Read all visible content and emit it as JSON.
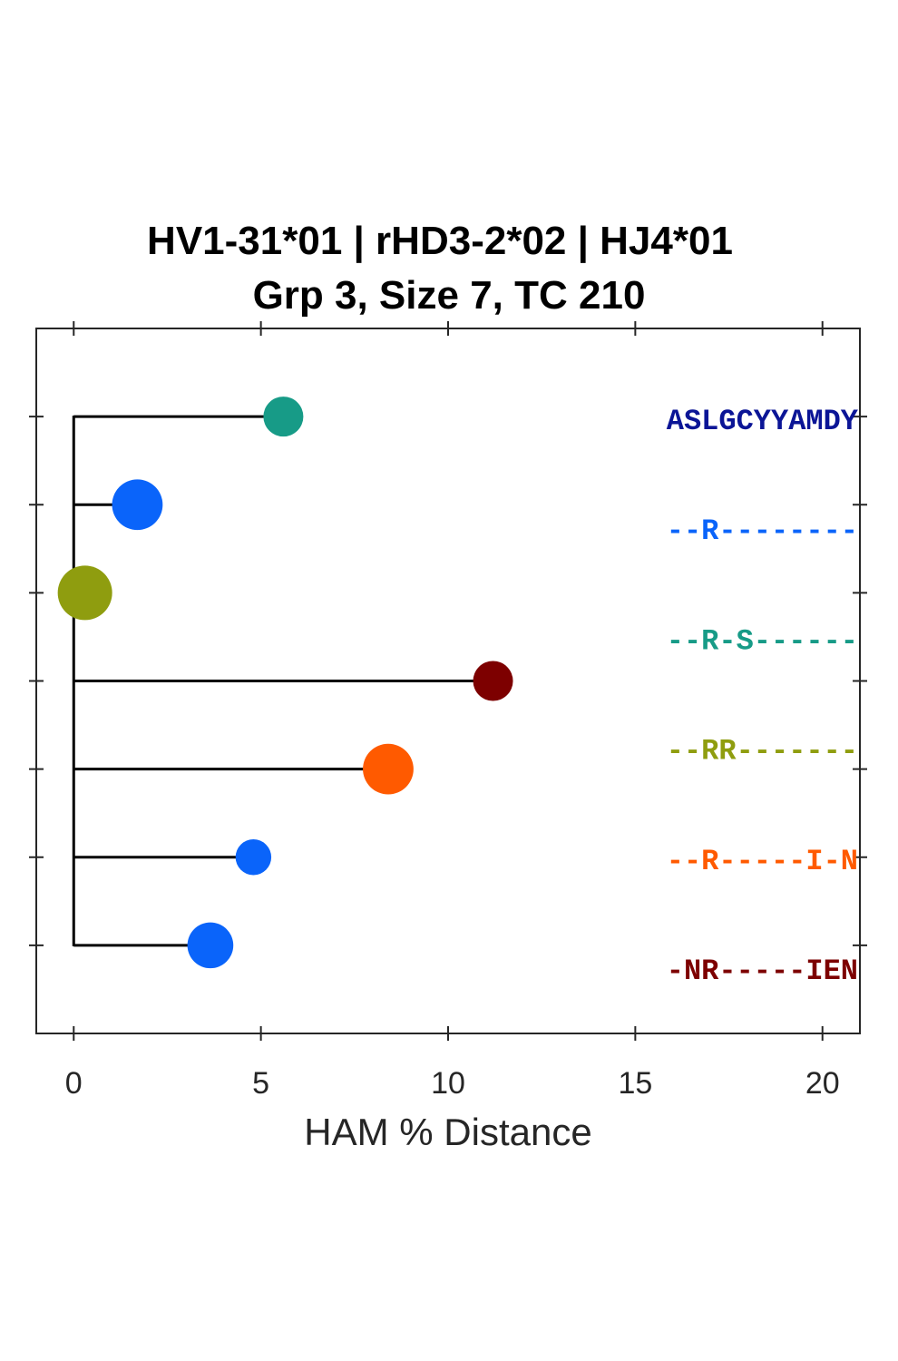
{
  "chart_data": {
    "type": "scatter",
    "title": [
      "HV1-31*01 | rHD3-2*02 | HJ4*01",
      "Grp 3, Size 7, TC 210"
    ],
    "xlabel": "HAM % Distance",
    "ylabel": "",
    "xlim": [
      -1,
      21
    ],
    "xticks": [
      0,
      5,
      10,
      15,
      20
    ],
    "xtick_labels": [
      "0",
      "5",
      "10",
      "15",
      "20"
    ],
    "grid": false,
    "tree": {
      "root_x": 0,
      "points": [
        {
          "row": 1,
          "x": 5.6,
          "size": 1,
          "color": "#179b87"
        },
        {
          "row": 2,
          "x": 1.7,
          "size": 3,
          "color": "#0a64fa"
        },
        {
          "row": 3,
          "x": 0.3,
          "size": 4,
          "color": "#8f9d0f"
        },
        {
          "row": 4,
          "x": 11.2,
          "size": 1,
          "color": "#7d0000"
        },
        {
          "row": 5,
          "x": 8.4,
          "size": 3,
          "color": "#ff5a00"
        },
        {
          "row": 6,
          "x": 4.8,
          "size": 0.5,
          "color": "#0a64fa"
        },
        {
          "row": 7,
          "x": 3.65,
          "size": 2,
          "color": "#0a64fa"
        }
      ]
    },
    "sequences": [
      {
        "text": "ASLGCYYAMDY",
        "color": "#0b1596"
      },
      {
        "text": "--R--------",
        "color": "#0a64fa"
      },
      {
        "text": "--R-S------",
        "color": "#179b87"
      },
      {
        "text": "--RR-------",
        "color": "#8f9d0f"
      },
      {
        "text": "--R-----I-N",
        "color": "#ff5a00"
      },
      {
        "text": "-NR-----IEN",
        "color": "#7d0000"
      }
    ]
  }
}
